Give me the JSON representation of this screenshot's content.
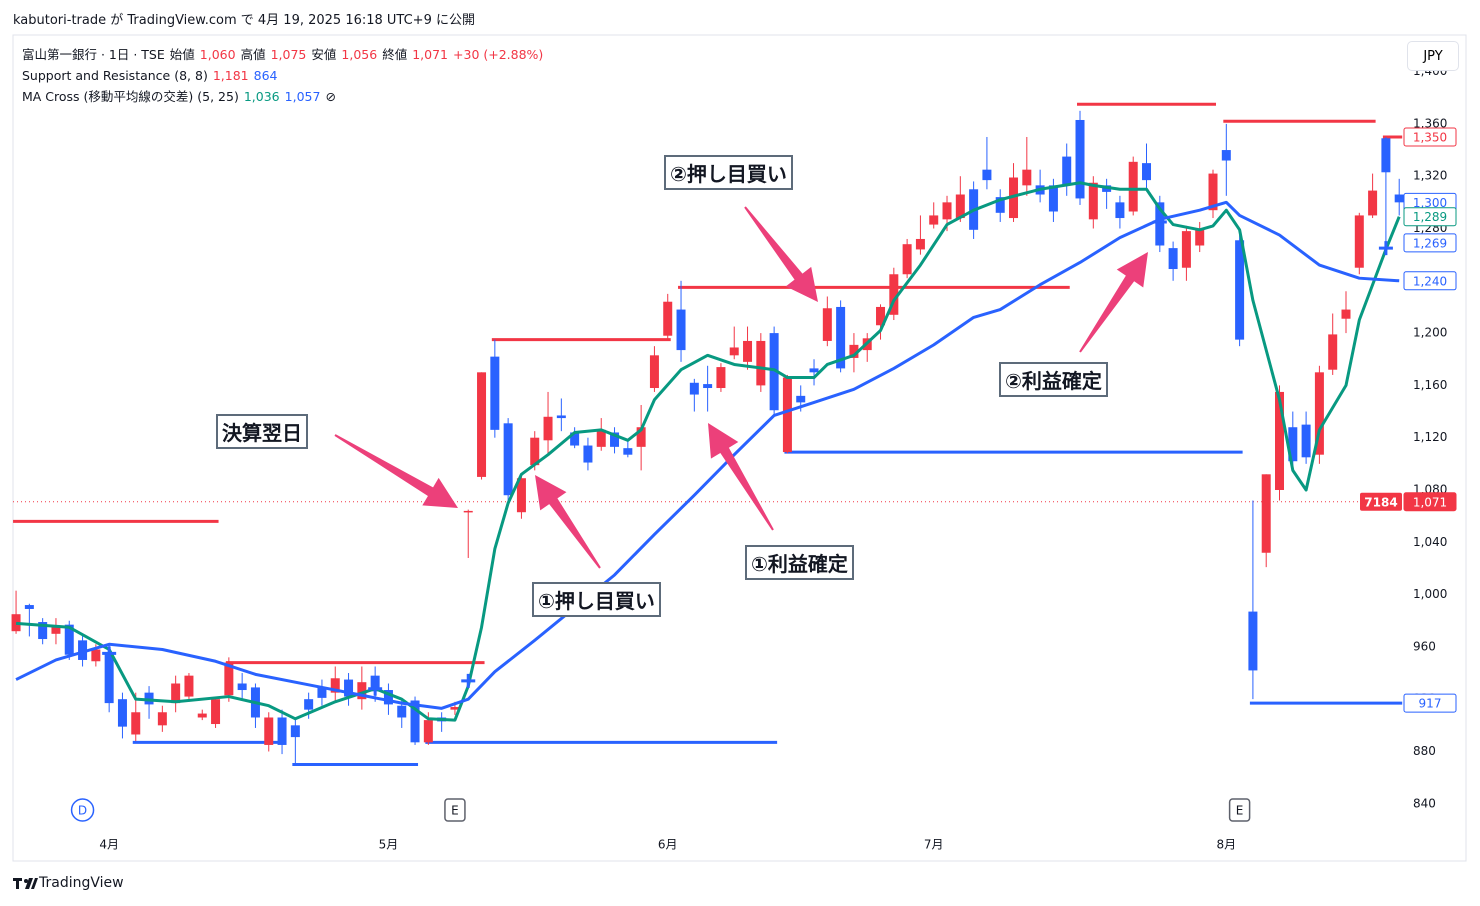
{
  "header": "kabutori-trade が TradingView.com で 4月 19, 2025 16:18 UTC+9 に公開",
  "legend": [
    [
      {
        "text": "富山第一銀行 · 1日 · TSE",
        "color": "#131722"
      },
      {
        "text": "始値",
        "color": "#131722"
      },
      {
        "text": "1,060",
        "color": "#f23645"
      },
      {
        "text": "高値",
        "color": "#131722"
      },
      {
        "text": "1,075",
        "color": "#f23645"
      },
      {
        "text": "安値",
        "color": "#131722"
      },
      {
        "text": "1,056",
        "color": "#f23645"
      },
      {
        "text": "終値",
        "color": "#131722"
      },
      {
        "text": "1,071",
        "color": "#f23645"
      },
      {
        "text": "+30 (+2.88%)",
        "color": "#f23645"
      }
    ],
    [
      {
        "text": "Support and Resistance (8, 8)",
        "color": "#131722"
      },
      {
        "text": "1,181",
        "color": "#f23645"
      },
      {
        "text": "864",
        "color": "#2962ff"
      }
    ],
    [
      {
        "text": "MA Cross (移動平均線の交差) (5, 25)",
        "color": "#131722"
      },
      {
        "text": "1,036",
        "color": "#089981"
      },
      {
        "text": "1,057",
        "color": "#2962ff"
      },
      {
        "text": "⊘",
        "color": "#131722"
      }
    ]
  ],
  "currency_button": "JPY",
  "brand": "TradingView",
  "annotations": [
    "決算翌日",
    "①押し目買い",
    "①利益確定",
    "②押し目買い",
    "②利益確定"
  ],
  "chart_data": {
    "type": "candlestick",
    "up_color": "#f23645",
    "down_color": "#2962ff",
    "categories": [
      null,
      null,
      null,
      null,
      null,
      null,
      null,
      null,
      null,
      null,
      null,
      null,
      null,
      null,
      null,
      null,
      null,
      null,
      null,
      null,
      null,
      null,
      null,
      null,
      null,
      null,
      null,
      null,
      null,
      null,
      null,
      null,
      null,
      null,
      null,
      null,
      null,
      null,
      null,
      null,
      null,
      null,
      null,
      null,
      null,
      null,
      null,
      null,
      null,
      null,
      null,
      null,
      null,
      null,
      null,
      null,
      null,
      null,
      null,
      null,
      null,
      null,
      null,
      null,
      null,
      null,
      null,
      null,
      null,
      null,
      null,
      null,
      null,
      null,
      null,
      null,
      null,
      null,
      null,
      null,
      null,
      null,
      null,
      null,
      null,
      null,
      null,
      null,
      null,
      null,
      null,
      null,
      null,
      null,
      null,
      null,
      null,
      null,
      null,
      null,
      null,
      null,
      null,
      null,
      null
    ],
    "ohlc": [
      [
        972,
        1003,
        970,
        985
      ],
      [
        992,
        993,
        968,
        989
      ],
      [
        979,
        982,
        962,
        966
      ],
      [
        970,
        982,
        962,
        975
      ],
      [
        977,
        980,
        950,
        954
      ],
      [
        965,
        970,
        945,
        950
      ],
      [
        949,
        962,
        945,
        958
      ],
      [
        956,
        962,
        910,
        917
      ],
      [
        920,
        925,
        890,
        899
      ],
      [
        893,
        925,
        888,
        910
      ],
      [
        925,
        930,
        905,
        916
      ],
      [
        900,
        915,
        895,
        910
      ],
      [
        917,
        938,
        910,
        932
      ],
      [
        922,
        940,
        918,
        938
      ],
      [
        906,
        912,
        904,
        909
      ],
      [
        901,
        922,
        898,
        920
      ],
      [
        923,
        952,
        918,
        948
      ],
      [
        932,
        940,
        920,
        927
      ],
      [
        929,
        932,
        898,
        906
      ],
      [
        885,
        910,
        880,
        906
      ],
      [
        906,
        912,
        878,
        885
      ],
      [
        900,
        905,
        870,
        891
      ],
      [
        920,
        925,
        905,
        912
      ],
      [
        929,
        935,
        915,
        921
      ],
      [
        925,
        945,
        918,
        936
      ],
      [
        935,
        940,
        915,
        922
      ],
      [
        920,
        945,
        912,
        933
      ],
      [
        938,
        945,
        918,
        926
      ],
      [
        927,
        932,
        908,
        916
      ],
      [
        915,
        920,
        898,
        906
      ],
      [
        919,
        922,
        885,
        887
      ],
      [
        887,
        910,
        885,
        904
      ],
      [
        906,
        910,
        895,
        903
      ],
      [
        912,
        918,
        908,
        914
      ],
      [
        1063,
        1065,
        1028,
        1064
      ],
      [
        1090,
        1170,
        1088,
        1170
      ],
      [
        1182,
        1195,
        1120,
        1126
      ],
      [
        1131,
        1135,
        1070,
        1076
      ],
      [
        1063,
        1093,
        1058,
        1089
      ],
      [
        1099,
        1125,
        1095,
        1120
      ],
      [
        1118,
        1155,
        1108,
        1136
      ],
      [
        1137,
        1150,
        1125,
        1135
      ],
      [
        1124,
        1128,
        1112,
        1114
      ],
      [
        1114,
        1120,
        1095,
        1101
      ],
      [
        1113,
        1135,
        1110,
        1126
      ],
      [
        1124,
        1128,
        1108,
        1113
      ],
      [
        1112,
        1118,
        1105,
        1107
      ],
      [
        1113,
        1145,
        1095,
        1128
      ],
      [
        1158,
        1190,
        1155,
        1183
      ],
      [
        1198,
        1230,
        1195,
        1224
      ],
      [
        1218,
        1240,
        1178,
        1187
      ],
      [
        1162,
        1165,
        1140,
        1153
      ],
      [
        1161,
        1175,
        1140,
        1158
      ],
      [
        1158,
        1177,
        1155,
        1174
      ],
      [
        1183,
        1205,
        1180,
        1189
      ],
      [
        1178,
        1205,
        1172,
        1194
      ],
      [
        1160,
        1200,
        1155,
        1194
      ],
      [
        1200,
        1205,
        1137,
        1141
      ],
      [
        1109,
        1168,
        1108,
        1166
      ],
      [
        1152,
        1160,
        1140,
        1147
      ],
      [
        1173,
        1180,
        1160,
        1170
      ],
      [
        1194,
        1228,
        1190,
        1219
      ],
      [
        1220,
        1225,
        1170,
        1173
      ],
      [
        1181,
        1200,
        1170,
        1191
      ],
      [
        1187,
        1200,
        1178,
        1196
      ],
      [
        1206,
        1222,
        1195,
        1220
      ],
      [
        1214,
        1250,
        1210,
        1245
      ],
      [
        1245,
        1272,
        1242,
        1268
      ],
      [
        1264,
        1290,
        1260,
        1272
      ],
      [
        1283,
        1300,
        1280,
        1290
      ],
      [
        1287,
        1305,
        1278,
        1300
      ],
      [
        1288,
        1320,
        1285,
        1306
      ],
      [
        1310,
        1316,
        1272,
        1279
      ],
      [
        1325,
        1350,
        1310,
        1317
      ],
      [
        1304,
        1310,
        1285,
        1292
      ],
      [
        1288,
        1330,
        1285,
        1319
      ],
      [
        1313,
        1350,
        1305,
        1325
      ],
      [
        1313,
        1325,
        1300,
        1306
      ],
      [
        1313,
        1318,
        1285,
        1293
      ],
      [
        1335,
        1345,
        1305,
        1313
      ],
      [
        1363,
        1370,
        1298,
        1303
      ],
      [
        1287,
        1320,
        1280,
        1315
      ],
      [
        1313,
        1318,
        1295,
        1308
      ],
      [
        1300,
        1305,
        1280,
        1288
      ],
      [
        1293,
        1335,
        1290,
        1331
      ],
      [
        1330,
        1345,
        1310,
        1317
      ],
      [
        1300,
        1305,
        1262,
        1267
      ],
      [
        1265,
        1270,
        1240,
        1249
      ],
      [
        1250,
        1282,
        1240,
        1278
      ],
      [
        1267,
        1285,
        1262,
        1280
      ],
      [
        1294,
        1325,
        1288,
        1322
      ],
      [
        1340,
        1360,
        1305,
        1332
      ],
      [
        1271,
        1275,
        1190,
        1195
      ],
      [
        987,
        1072,
        920,
        942
      ],
      [
        1032,
        1092,
        1021,
        1092
      ],
      [
        1080,
        1160,
        1072,
        1155
      ],
      [
        1128,
        1140,
        1095,
        1102
      ],
      [
        1130,
        1140,
        1100,
        1105
      ],
      [
        1107,
        1175,
        1100,
        1170
      ],
      [
        1172,
        1215,
        1168,
        1199
      ],
      [
        1211,
        1232,
        1200,
        1218
      ],
      [
        1250,
        1292,
        1245,
        1290
      ],
      [
        1290,
        1322,
        1288,
        1309
      ],
      [
        1349,
        1350,
        1270,
        1323
      ],
      [
        1306,
        1318,
        1290,
        1300
      ]
    ],
    "lines": [
      {
        "color": "#089981",
        "x": [
          0,
          4,
          7,
          9,
          12,
          16,
          19,
          21,
          24,
          27,
          29,
          31,
          33,
          34,
          35,
          36,
          37,
          38,
          40,
          42,
          44,
          46,
          47,
          48,
          50,
          52,
          54,
          57,
          58,
          60,
          61,
          63,
          65,
          66,
          68,
          70,
          72,
          74,
          77,
          80,
          81,
          83,
          85,
          86,
          87,
          89,
          90,
          91,
          92,
          93,
          95,
          96,
          97,
          98,
          100,
          101,
          103,
          104
        ],
        "values": [
          978,
          975,
          958,
          920,
          918,
          922,
          915,
          905,
          918,
          928,
          920,
          905,
          904,
          930,
          975,
          1035,
          1070,
          1092,
          1107,
          1124,
          1126,
          1118,
          1126,
          1149,
          1172,
          1183,
          1176,
          1172,
          1166,
          1166,
          1176,
          1183,
          1202,
          1225,
          1252,
          1283,
          1294,
          1302,
          1310,
          1315,
          1313,
          1310,
          1310,
          1295,
          1283,
          1279,
          1282,
          1294,
          1279,
          1225,
          1149,
          1095,
          1080,
          1126,
          1160,
          1210,
          1264,
          1289
        ]
      },
      {
        "color": "#2962ff",
        "x": [
          0,
          3,
          7,
          11,
          15,
          18,
          22,
          26,
          29,
          32,
          34,
          36,
          39,
          42,
          45,
          48,
          51,
          54,
          57,
          60,
          63,
          66,
          69,
          72,
          74,
          77,
          80,
          83,
          86,
          89,
          91,
          92,
          95,
          98,
          101,
          104
        ],
        "values": [
          935,
          950,
          962,
          958,
          949,
          939,
          931,
          923,
          917,
          913,
          920,
          941,
          965,
          990,
          1015,
          1046,
          1076,
          1107,
          1137,
          1147,
          1157,
          1173,
          1191,
          1212,
          1218,
          1237,
          1254,
          1273,
          1287,
          1294,
          1300,
          1290,
          1275,
          1252,
          1242,
          1240
        ]
      }
    ],
    "levels": [
      {
        "start": 0,
        "end": 15,
        "value": 1056,
        "color": "#f23645"
      },
      {
        "start": 16,
        "end": 35,
        "value": 948,
        "color": "#f23645"
      },
      {
        "start": 36,
        "end": 49,
        "value": 1195,
        "color": "#f23645"
      },
      {
        "start": 50,
        "end": 79,
        "value": 1235,
        "color": "#f23645"
      },
      {
        "start": 80,
        "end": 90,
        "value": 1375,
        "color": "#f23645"
      },
      {
        "start": 91,
        "end": 102,
        "value": 1362,
        "color": "#f23645"
      },
      {
        "start": 103,
        "end": 104,
        "value": 1350,
        "color": "#f23645"
      },
      {
        "start": 9,
        "end": 20,
        "value": 887,
        "color": "#2962ff"
      },
      {
        "start": 21,
        "end": 30,
        "value": 870,
        "color": "#2962ff"
      },
      {
        "start": 31,
        "end": 57,
        "value": 887,
        "color": "#2962ff"
      },
      {
        "start": 58,
        "end": 92,
        "value": 1109,
        "color": "#2962ff"
      },
      {
        "start": 93,
        "end": 104,
        "value": 917,
        "color": "#2962ff"
      }
    ],
    "cross_markers": {
      "color": "#2962ff",
      "x": [
        7,
        27,
        34,
        86,
        103
      ],
      "values": [
        955,
        928,
        934,
        1285,
        1265
      ]
    },
    "badges": [
      {
        "x": 5,
        "label": "D",
        "shape": "circle"
      },
      {
        "x": 33,
        "label": "E",
        "shape": "square"
      },
      {
        "x": 92,
        "label": "E",
        "shape": "square"
      }
    ],
    "price_labels": [
      {
        "value": 1350,
        "label": "1,350",
        "color": "#f23645",
        "style": "outline"
      },
      {
        "value": 1300,
        "label": "1,300",
        "color": "#2962ff",
        "style": "outline"
      },
      {
        "value": 1289,
        "label": "1,289",
        "color": "#089981",
        "style": "outline"
      },
      {
        "value": 1269,
        "label": "1,269",
        "color": "#2962ff",
        "style": "outline"
      },
      {
        "value": 1240,
        "label": "1,240",
        "color": "#2962ff",
        "style": "outline"
      },
      {
        "value": 917,
        "label": "917",
        "color": "#2962ff",
        "style": "outline"
      },
      {
        "value": 1071,
        "label": "1,071",
        "symbol": "7184",
        "color": "#f23645",
        "style": "filled"
      }
    ],
    "xlim": [
      -0.23,
      104.06
    ],
    "xticks": [
      {
        "value": 7,
        "label": "4月"
      },
      {
        "value": 28,
        "label": "5月"
      },
      {
        "value": 49,
        "label": "6月"
      },
      {
        "value": 69,
        "label": "7月"
      },
      {
        "value": 91,
        "label": "8月"
      }
    ],
    "ylim": [
      797,
      1428
    ],
    "yticks": [
      840,
      880,
      920,
      960,
      {
        "value": 1000,
        "label": "1,000"
      },
      {
        "value": 1040,
        "label": "1,040"
      },
      {
        "value": 1080,
        "label": "1,080"
      },
      {
        "value": 1120,
        "label": "1,120"
      },
      {
        "value": 1160,
        "label": "1,160"
      },
      {
        "value": 1200,
        "label": "1,200"
      },
      {
        "value": 1240,
        "label": "1,240"
      },
      {
        "value": 1280,
        "label": "1,280"
      },
      {
        "value": 1320,
        "label": "1,320"
      },
      {
        "value": 1360,
        "label": "1,360"
      },
      {
        "value": 1400,
        "label": "1,400"
      }
    ],
    "grid": false
  }
}
